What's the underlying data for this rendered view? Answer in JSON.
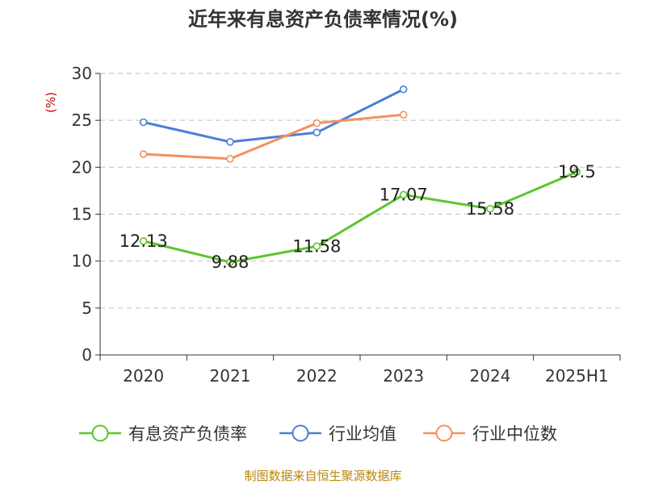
{
  "title": "近年来有息资产负债率情况(%)",
  "source": "制图数据来自恒生聚源数据库",
  "chart_data": {
    "type": "line",
    "title": "近年来有息资产负债率情况(%)",
    "ylabel": "(%)",
    "xlabel": "",
    "categories": [
      "2020",
      "2021",
      "2022",
      "2023",
      "2024",
      "2025H1"
    ],
    "ylim": [
      0,
      30
    ],
    "yticks": [
      0,
      5,
      10,
      15,
      20,
      25,
      30
    ],
    "grid": true,
    "legend_position": "bottom",
    "series": [
      {
        "name": "有息资产负债率",
        "color": "#5cc62a",
        "values": [
          12.13,
          9.88,
          11.58,
          17.07,
          15.58,
          19.5
        ],
        "labels": [
          "12.13",
          "9.88",
          "11.58",
          "17.07",
          "15.58",
          "19.5"
        ]
      },
      {
        "name": "行业均值",
        "color": "#4a7fd8",
        "values": [
          24.8,
          22.7,
          23.7,
          28.3,
          null,
          null
        ]
      },
      {
        "name": "行业中位数",
        "color": "#f4905e",
        "values": [
          21.4,
          20.9,
          24.7,
          25.6,
          null,
          null
        ]
      }
    ]
  }
}
